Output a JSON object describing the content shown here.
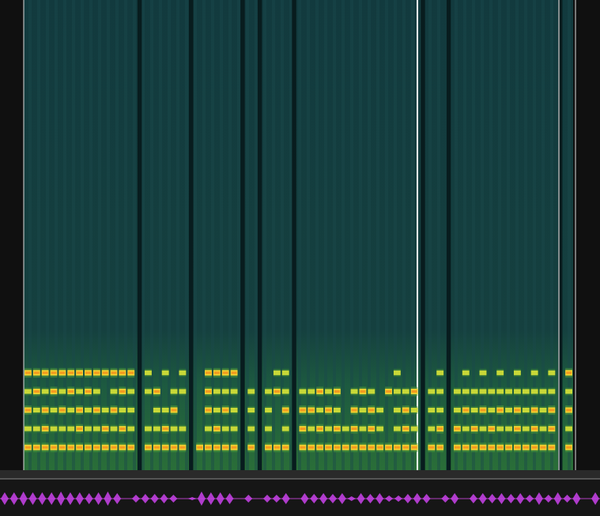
{
  "chart_data": {
    "type": "heatmap",
    "tick_labels": false,
    "cells": [
      [
        2,
        2,
        2,
        2,
        2,
        2,
        2,
        2,
        2,
        2,
        2,
        2,
        2,
        0,
        1,
        0,
        1,
        0,
        1,
        0,
        0,
        2,
        2,
        2,
        2,
        0,
        0,
        0,
        0,
        1,
        1,
        0,
        0,
        0,
        0,
        0,
        0,
        0,
        0,
        0,
        0,
        0,
        0,
        1,
        0,
        0,
        0,
        0,
        1,
        0,
        0,
        1,
        0,
        1,
        0,
        1,
        0,
        1,
        0,
        1,
        0,
        1,
        0,
        2
      ],
      [
        1,
        2,
        1,
        2,
        1,
        2,
        1,
        2,
        1,
        0,
        1,
        2,
        1,
        0,
        1,
        2,
        0,
        1,
        1,
        0,
        0,
        2,
        1,
        1,
        1,
        0,
        1,
        0,
        1,
        2,
        1,
        0,
        1,
        1,
        2,
        1,
        2,
        0,
        1,
        2,
        1,
        0,
        2,
        1,
        1,
        2,
        0,
        1,
        1,
        0,
        1,
        1,
        1,
        1,
        1,
        1,
        1,
        1,
        1,
        1,
        1,
        1,
        0,
        1
      ],
      [
        2,
        1,
        2,
        1,
        2,
        1,
        2,
        1,
        2,
        1,
        2,
        1,
        1,
        0,
        0,
        1,
        1,
        2,
        0,
        0,
        0,
        2,
        1,
        2,
        1,
        0,
        1,
        0,
        1,
        0,
        2,
        0,
        2,
        2,
        1,
        2,
        1,
        0,
        2,
        1,
        2,
        1,
        0,
        1,
        2,
        1,
        0,
        1,
        1,
        0,
        1,
        2,
        1,
        2,
        1,
        2,
        1,
        2,
        1,
        2,
        1,
        2,
        0,
        2
      ],
      [
        1,
        1,
        2,
        1,
        1,
        1,
        2,
        1,
        1,
        2,
        1,
        2,
        1,
        0,
        1,
        1,
        2,
        1,
        1,
        0,
        0,
        1,
        2,
        1,
        1,
        0,
        1,
        0,
        1,
        0,
        1,
        0,
        2,
        1,
        2,
        1,
        2,
        1,
        2,
        1,
        2,
        1,
        0,
        1,
        2,
        1,
        0,
        1,
        2,
        0,
        2,
        1,
        2,
        1,
        2,
        1,
        1,
        2,
        1,
        2,
        1,
        2,
        0,
        1
      ],
      [
        2,
        2,
        2,
        2,
        2,
        2,
        2,
        2,
        2,
        2,
        2,
        2,
        2,
        0,
        2,
        2,
        2,
        2,
        2,
        0,
        2,
        2,
        2,
        2,
        2,
        0,
        2,
        0,
        2,
        2,
        2,
        0,
        2,
        2,
        2,
        2,
        2,
        2,
        2,
        2,
        2,
        2,
        2,
        2,
        2,
        2,
        0,
        2,
        2,
        0,
        2,
        2,
        2,
        2,
        2,
        2,
        2,
        2,
        2,
        2,
        2,
        2,
        0,
        2
      ]
    ]
  }
}
